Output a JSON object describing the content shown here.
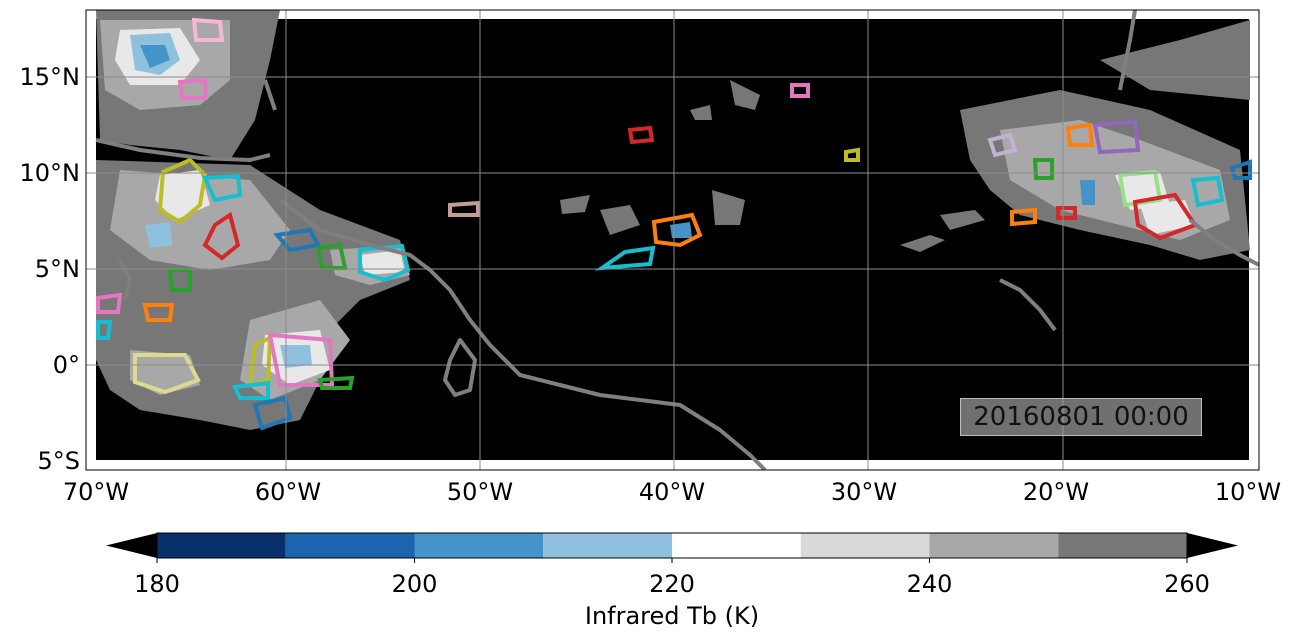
{
  "map": {
    "background": "#000000",
    "coastline_color": "#7f7f7f",
    "gridline_color": "#8c8c8c",
    "lon_ticks": [
      "70°W",
      "60°W",
      "50°W",
      "40°W",
      "30°W",
      "20°W",
      "10°W"
    ],
    "lat_ticks": [
      "15°N",
      "10°N",
      "5°N",
      "0°",
      "5°S"
    ],
    "timestamp": "20160801 00:00"
  },
  "colorbar": {
    "label": "Infrared Tb (K)",
    "tick_labels": [
      "180",
      "200",
      "220",
      "240",
      "260"
    ],
    "bins": [
      {
        "from": 180,
        "to": 190,
        "color": "#08306b"
      },
      {
        "from": 190,
        "to": 200,
        "color": "#1c64ad"
      },
      {
        "from": 200,
        "to": 210,
        "color": "#4594c9"
      },
      {
        "from": 210,
        "to": 220,
        "color": "#8fc1de"
      },
      {
        "from": 220,
        "to": 230,
        "color": "#ffffff"
      },
      {
        "from": 230,
        "to": 240,
        "color": "#d9d9d9"
      },
      {
        "from": 240,
        "to": 250,
        "color": "#a8a8a8"
      },
      {
        "from": 250,
        "to": 260,
        "color": "#777777"
      }
    ],
    "under_color": "#000000",
    "over_color": "#000000"
  }
}
